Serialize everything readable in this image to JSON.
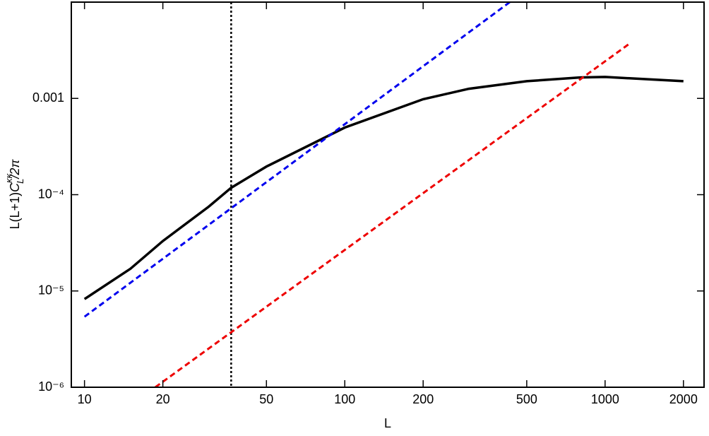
{
  "chart_data": {
    "type": "line",
    "x_label": "L",
    "y_label": [
      "L(L+1)",
      "C",
      "κκ",
      "L",
      "/2π"
    ],
    "log_x": true,
    "log_y": true,
    "grid": false,
    "xlim": [
      8.9,
      2400
    ],
    "ylim": [
      1e-06,
      0.01
    ],
    "xticks": [
      10,
      20,
      50,
      100,
      200,
      500,
      1000,
      2000
    ],
    "yticks": [
      {
        "value": 1e-06,
        "label": "10⁻⁶"
      },
      {
        "value": 1e-05,
        "label": "10⁻⁵"
      },
      {
        "value": 0.0001,
        "label": "10⁻⁴"
      },
      0.001
    ],
    "series": [
      {
        "color": "#000000",
        "style": "solid",
        "x": [
          10,
          15,
          20,
          30,
          36.6,
          50,
          100,
          200,
          300,
          500,
          800,
          1000,
          2000
        ],
        "values": [
          8.24e-06,
          1.7e-05,
          3.3e-05,
          7.5e-05,
          0.000118,
          0.000196,
          0.000498,
          0.00098,
          0.00126,
          0.00151,
          0.00165,
          0.00167,
          0.00151
        ]
      },
      {
        "color": "#0000ee",
        "style": "dashed",
        "x": [
          10,
          430
        ],
        "values": [
          5.4e-06,
          0.00998
        ]
      },
      {
        "color": "#ee0000",
        "style": "dashed",
        "x": [
          18.7,
          1228
        ],
        "values": [
          1e-06,
          0.00363
        ]
      }
    ],
    "vlines": [
      {
        "x": 36.6,
        "color": "#000000",
        "style": "dotted"
      }
    ]
  }
}
